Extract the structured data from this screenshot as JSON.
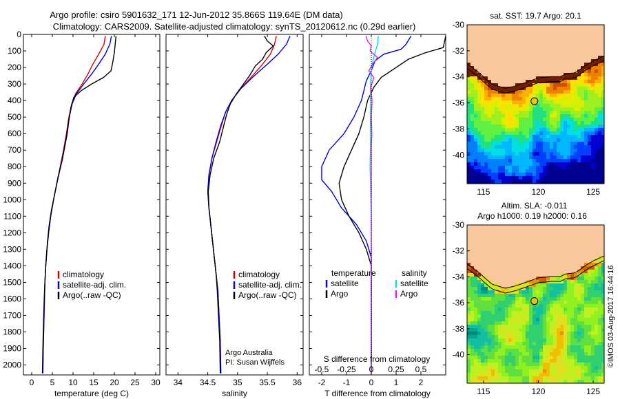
{
  "header": {
    "line1": "Argo profile: csiro 5901632_171 12-Jun-2012 35.866S 119.64E (DM data)",
    "line2": "Climatology: CARS2009. Satellite-adjusted climatology: synTS_20120612.nc (0.29d earlier)"
  },
  "credit": "©IMOS 03-Aug-2017 16:44:16",
  "colors": {
    "clim": "#d40000",
    "sat": "#0000e0",
    "argo": "#000000",
    "sal_sat": "#00e0e0",
    "sal_argo": "#e020e0",
    "land": "#f8c89c"
  },
  "chart_data": [
    {
      "type": "line",
      "name": "temperature-profile",
      "xlabel": "temperature (deg C)",
      "xlim": [
        -2,
        31
      ],
      "ylim": [
        2060,
        0
      ],
      "xticks": [
        0,
        5,
        10,
        15,
        20,
        25,
        30
      ],
      "yticks": [
        0,
        100,
        200,
        300,
        400,
        500,
        600,
        700,
        800,
        900,
        1000,
        1100,
        1200,
        1300,
        1400,
        1500,
        1600,
        1700,
        1800,
        1900,
        2000
      ],
      "legend": [
        "climatology",
        "satellite-adj. clim.",
        "Argo(..raw -QC)"
      ],
      "series": [
        {
          "name": "climatology",
          "color": "#d40000",
          "points": [
            [
              17.8,
              10
            ],
            [
              17.5,
              60
            ],
            [
              16.2,
              120
            ],
            [
              14.8,
              180
            ],
            [
              13.6,
              240
            ],
            [
              12.2,
              300
            ],
            [
              10.6,
              360
            ],
            [
              9.7,
              420
            ],
            [
              9.0,
              500
            ],
            [
              8.4,
              600
            ],
            [
              7.7,
              700
            ],
            [
              6.9,
              800
            ],
            [
              6.1,
              900
            ],
            [
              5.3,
              1000
            ],
            [
              4.6,
              1100
            ],
            [
              4.1,
              1200
            ],
            [
              3.7,
              1300
            ],
            [
              3.4,
              1400
            ],
            [
              3.2,
              1500
            ],
            [
              3.0,
              1700
            ],
            [
              2.8,
              1900
            ],
            [
              2.7,
              2050
            ]
          ]
        },
        {
          "name": "satellite-adj. clim.",
          "color": "#0000e0",
          "points": [
            [
              19.3,
              10
            ],
            [
              18.9,
              60
            ],
            [
              17.8,
              120
            ],
            [
              16.2,
              180
            ],
            [
              14.5,
              240
            ],
            [
              12.6,
              300
            ],
            [
              10.8,
              360
            ],
            [
              9.8,
              420
            ],
            [
              9.1,
              500
            ],
            [
              8.5,
              600
            ],
            [
              7.8,
              700
            ],
            [
              7.0,
              800
            ],
            [
              6.1,
              900
            ],
            [
              5.3,
              1000
            ],
            [
              4.6,
              1100
            ],
            [
              4.1,
              1200
            ],
            [
              3.7,
              1300
            ],
            [
              3.4,
              1400
            ],
            [
              3.2,
              1500
            ],
            [
              3.0,
              1700
            ],
            [
              2.8,
              1900
            ],
            [
              2.7,
              2050
            ]
          ]
        },
        {
          "name": "Argo(..raw -QC)",
          "color": "#000000",
          "points": [
            [
              20.4,
              10
            ],
            [
              20.2,
              60
            ],
            [
              20.0,
              110
            ],
            [
              19.6,
              170
            ],
            [
              19.2,
              220
            ],
            [
              17.4,
              260
            ],
            [
              14.5,
              300
            ],
            [
              12.0,
              340
            ],
            [
              10.2,
              380
            ],
            [
              9.5,
              440
            ],
            [
              9.0,
              520
            ],
            [
              8.6,
              600
            ],
            [
              8.0,
              680
            ],
            [
              7.4,
              760
            ],
            [
              6.4,
              860
            ],
            [
              5.6,
              960
            ],
            [
              4.8,
              1060
            ],
            [
              4.2,
              1160
            ],
            [
              3.8,
              1260
            ],
            [
              3.4,
              1400
            ],
            [
              3.1,
              1550
            ],
            [
              2.9,
              1700
            ],
            [
              2.7,
              1900
            ],
            [
              2.6,
              2050
            ]
          ]
        }
      ]
    },
    {
      "type": "line",
      "name": "salinity-profile",
      "xlabel": "salinity",
      "xlim": [
        33.8,
        36.1
      ],
      "ylim": [
        2060,
        0
      ],
      "xticks": [
        34,
        34.5,
        35,
        35.5,
        36
      ],
      "xticklabels": [
        "34",
        "34.5",
        "35",
        "35.5",
        "36"
      ],
      "legend": [
        "climatology",
        "satellite-adj. clim.",
        "Argo(..raw -QC)"
      ],
      "annotation": [
        "Argo Australia",
        "PI: Susan Wijffels"
      ],
      "series": [
        {
          "name": "climatology",
          "color": "#d40000",
          "points": [
            [
              35.65,
              10
            ],
            [
              35.62,
              60
            ],
            [
              35.55,
              120
            ],
            [
              35.42,
              180
            ],
            [
              35.25,
              250
            ],
            [
              35.05,
              330
            ],
            [
              34.9,
              400
            ],
            [
              34.8,
              470
            ],
            [
              34.73,
              550
            ],
            [
              34.65,
              650
            ],
            [
              34.57,
              750
            ],
            [
              34.52,
              850
            ],
            [
              34.5,
              950
            ],
            [
              34.52,
              1050
            ],
            [
              34.55,
              1150
            ],
            [
              34.58,
              1250
            ],
            [
              34.61,
              1350
            ],
            [
              34.64,
              1450
            ],
            [
              34.67,
              1550
            ],
            [
              34.69,
              1700
            ],
            [
              34.71,
              1850
            ],
            [
              34.72,
              2050
            ]
          ]
        },
        {
          "name": "satellite-adj. clim.",
          "color": "#0000e0",
          "points": [
            [
              35.88,
              10
            ],
            [
              35.82,
              60
            ],
            [
              35.68,
              120
            ],
            [
              35.5,
              180
            ],
            [
              35.28,
              250
            ],
            [
              35.05,
              330
            ],
            [
              34.9,
              400
            ],
            [
              34.8,
              470
            ],
            [
              34.72,
              550
            ],
            [
              34.64,
              650
            ],
            [
              34.57,
              750
            ],
            [
              34.52,
              850
            ],
            [
              34.5,
              950
            ],
            [
              34.52,
              1050
            ],
            [
              34.55,
              1150
            ],
            [
              34.58,
              1250
            ],
            [
              34.61,
              1350
            ],
            [
              34.64,
              1450
            ],
            [
              34.67,
              1550
            ],
            [
              34.69,
              1700
            ],
            [
              34.71,
              1850
            ],
            [
              34.72,
              2050
            ]
          ]
        },
        {
          "name": "Argo(..raw -QC)",
          "color": "#000000",
          "points": [
            [
              35.45,
              10
            ],
            [
              35.5,
              40
            ],
            [
              35.6,
              70
            ],
            [
              35.48,
              110
            ],
            [
              35.42,
              150
            ],
            [
              35.3,
              190
            ],
            [
              35.25,
              220
            ],
            [
              35.2,
              250
            ],
            [
              35.1,
              300
            ],
            [
              34.98,
              360
            ],
            [
              34.88,
              420
            ],
            [
              34.82,
              480
            ],
            [
              34.77,
              550
            ],
            [
              34.7,
              650
            ],
            [
              34.6,
              750
            ],
            [
              34.54,
              850
            ],
            [
              34.51,
              950
            ],
            [
              34.52,
              1050
            ],
            [
              34.55,
              1150
            ],
            [
              34.58,
              1250
            ],
            [
              34.61,
              1350
            ],
            [
              34.64,
              1450
            ],
            [
              34.66,
              1550
            ],
            [
              34.68,
              1700
            ],
            [
              34.7,
              1850
            ],
            [
              34.71,
              2050
            ]
          ]
        }
      ]
    },
    {
      "type": "line",
      "name": "difference-profile",
      "xlabel": "T difference from climatology",
      "xlabel_top": "S difference from climatology",
      "xlim": [
        -2.5,
        3.0
      ],
      "ylim": [
        2060,
        0
      ],
      "xticks": [
        -2,
        -1,
        0,
        1,
        2
      ],
      "top_ticks": [
        -0.5,
        -0.25,
        0,
        0.25,
        0.5
      ],
      "top_ticklabels": [
        "-0.5",
        "-0.25",
        "0",
        "0.25",
        "0.5"
      ],
      "legend_temperature": {
        "title": "temperature",
        "items": [
          "satellite",
          "Argo"
        ]
      },
      "legend_salinity": {
        "title": "salinity",
        "items": [
          "satellite",
          "Argo"
        ]
      },
      "series": [
        {
          "name": "T satellite",
          "color": "#0000e0",
          "points": [
            [
              1.6,
              10
            ],
            [
              1.4,
              60
            ],
            [
              1.2,
              90
            ],
            [
              0.5,
              120
            ],
            [
              0.15,
              160
            ],
            [
              0.0,
              220
            ],
            [
              -0.2,
              280
            ],
            [
              -0.4,
              400
            ],
            [
              -0.7,
              500
            ],
            [
              -1.1,
              600
            ],
            [
              -1.7,
              700
            ],
            [
              -2.0,
              800
            ],
            [
              -2.0,
              880
            ],
            [
              -1.6,
              950
            ],
            [
              -1.2,
              1050
            ],
            [
              -0.6,
              1150
            ],
            [
              -0.2,
              1250
            ],
            [
              0.0,
              1350
            ],
            [
              0.0,
              1500
            ],
            [
              0.0,
              2050
            ]
          ]
        },
        {
          "name": "T Argo",
          "color": "#000000",
          "points": [
            [
              3.0,
              10
            ],
            [
              2.9,
              80
            ],
            [
              2.2,
              110
            ],
            [
              1.5,
              150
            ],
            [
              1.0,
              200
            ],
            [
              0.4,
              260
            ],
            [
              0.1,
              320
            ],
            [
              -0.15,
              400
            ],
            [
              -0.3,
              500
            ],
            [
              -0.5,
              600
            ],
            [
              -0.8,
              700
            ],
            [
              -1.1,
              800
            ],
            [
              -1.3,
              900
            ],
            [
              -1.2,
              1000
            ],
            [
              -0.9,
              1100
            ],
            [
              -0.5,
              1200
            ],
            [
              -0.2,
              1300
            ],
            [
              0.0,
              1400
            ],
            [
              0.0,
              2050
            ]
          ]
        },
        {
          "name": "S satellite",
          "color": "#00e0e0",
          "points": [
            [
              0.28,
              10
            ],
            [
              0.25,
              60
            ],
            [
              0.15,
              110
            ],
            [
              0.05,
              170
            ],
            [
              0.0,
              220
            ],
            [
              -0.03,
              300
            ],
            [
              -0.04,
              400
            ],
            [
              -0.04,
              500
            ],
            [
              -0.04,
              600
            ],
            [
              -0.04,
              700
            ],
            [
              -0.05,
              800
            ],
            [
              -0.03,
              900
            ],
            [
              -0.02,
              1000
            ],
            [
              0.0,
              1150
            ],
            [
              0.0,
              2050
            ]
          ]
        },
        {
          "name": "S Argo",
          "color": "#e020e0",
          "points": [
            [
              -0.22,
              10
            ],
            [
              -0.15,
              40
            ],
            [
              0.0,
              70
            ],
            [
              -0.05,
              100
            ],
            [
              0.25,
              140
            ],
            [
              0.05,
              180
            ],
            [
              -0.1,
              220
            ],
            [
              0.1,
              260
            ],
            [
              -0.02,
              320
            ],
            [
              0.03,
              400
            ],
            [
              0.0,
              500
            ],
            [
              0.02,
              600
            ],
            [
              0.0,
              700
            ],
            [
              0.0,
              2050
            ]
          ]
        }
      ]
    },
    {
      "type": "heatmap",
      "name": "sst-map",
      "title": "sat. SST: 19.7 Argo: 20.1",
      "xlim": [
        113.5,
        126
      ],
      "ylim": [
        -42.2,
        -30
      ],
      "xticks": [
        115,
        120,
        125
      ],
      "yticks": [
        -30,
        -32,
        -34,
        -36,
        -38,
        -40
      ],
      "argo_position": [
        119.64,
        -35.866
      ]
    },
    {
      "type": "heatmap",
      "name": "sla-map",
      "title": "Altim. SLA: -0.011",
      "subtitle": "Argo h1000: 0.19 h2000: 0.16",
      "xlim": [
        113.5,
        126
      ],
      "ylim": [
        -42.2,
        -30
      ],
      "xticks": [
        115,
        120,
        125
      ],
      "yticks": [
        -30,
        -32,
        -34,
        -36,
        -38,
        -40
      ],
      "argo_position": [
        119.64,
        -35.866
      ]
    }
  ]
}
